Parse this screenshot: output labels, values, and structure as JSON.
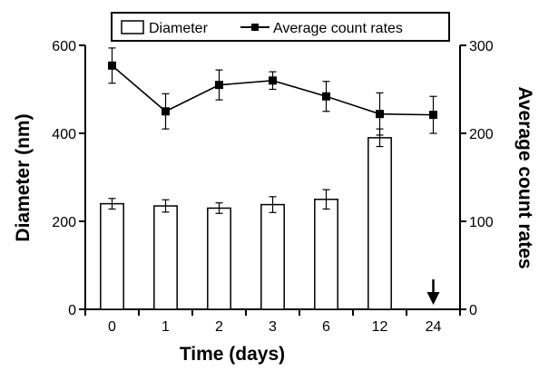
{
  "chart_data": {
    "type": "bar",
    "categories": [
      "0",
      "1",
      "2",
      "3",
      "6",
      "12",
      "24"
    ],
    "xlabel": "Time (days)",
    "ylabel": "Diameter (nm)",
    "y2label": "Average count rates",
    "ylim": [
      0,
      600
    ],
    "y2lim": [
      0,
      300
    ],
    "yticks": [
      "0",
      "200",
      "400",
      "600"
    ],
    "y2ticks": [
      "0",
      "100",
      "200",
      "300"
    ],
    "legend_position": "top",
    "grid": false,
    "series": [
      {
        "name": "Diameter",
        "kind": "bar",
        "axis": "left",
        "values": [
          240,
          235,
          230,
          238,
          250,
          390,
          null
        ],
        "errors": [
          12,
          14,
          12,
          18,
          22,
          20,
          null
        ],
        "color": "#ffffff",
        "edge_color": "#000000"
      },
      {
        "name": "Average count rates",
        "kind": "line",
        "axis": "right",
        "marker": "square",
        "values": [
          277,
          225,
          255,
          260,
          242,
          222,
          221
        ],
        "errors": [
          20,
          20,
          17,
          10,
          17,
          24,
          21
        ],
        "color": "#000000"
      }
    ],
    "annotations": [
      {
        "kind": "down-arrow",
        "category": "24",
        "meaning": "no diameter bar"
      }
    ]
  }
}
